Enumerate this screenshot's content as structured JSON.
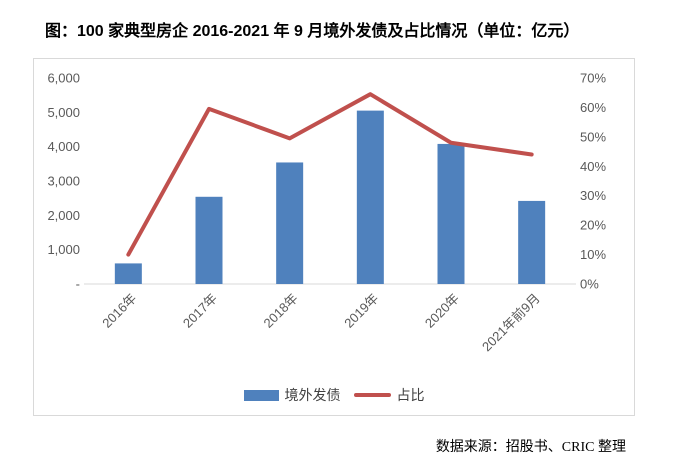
{
  "source_note": "数据来源：招股书、CRIC 整理",
  "colors": {
    "bar": "#4f81bd",
    "line": "#c0504d",
    "axis_text": "#595959",
    "axis_line": "#d9d9d9",
    "frame_border": "#d9d9d9",
    "title_text": "#000000",
    "footer_text": "#000000"
  },
  "chart_data": {
    "type": "bar",
    "subtype": "bar-line-combo",
    "title": "图：100 家典型房企 2016-2021 年 9 月境外发债及占比情况（单位：亿元）",
    "categories": [
      "2016年",
      "2017年",
      "2018年",
      "2019年",
      "2020年",
      "2021年前9月"
    ],
    "series": [
      {
        "name": "境外发债",
        "type": "bar",
        "axis": "left",
        "unit": "亿元",
        "values": [
          600,
          2540,
          3540,
          5050,
          4080,
          2420
        ]
      },
      {
        "name": "占比",
        "type": "line",
        "axis": "right",
        "unit": "%",
        "values": [
          10,
          59.5,
          49.5,
          64.5,
          48,
          44
        ]
      }
    ],
    "left_axis": {
      "min": 0,
      "max": 6000,
      "step": 1000,
      "tick_labels": [
        "-",
        "1,000",
        "2,000",
        "3,000",
        "4,000",
        "5,000",
        "6,000"
      ]
    },
    "right_axis": {
      "min": 0,
      "max": 70,
      "step": 10,
      "tick_labels": [
        "0%",
        "10%",
        "20%",
        "30%",
        "40%",
        "50%",
        "60%",
        "70%"
      ]
    },
    "gridlines": false,
    "legend_position": "bottom",
    "legend": [
      {
        "label": "境外发债",
        "swatch": "bar"
      },
      {
        "label": "占比",
        "swatch": "line"
      }
    ]
  }
}
